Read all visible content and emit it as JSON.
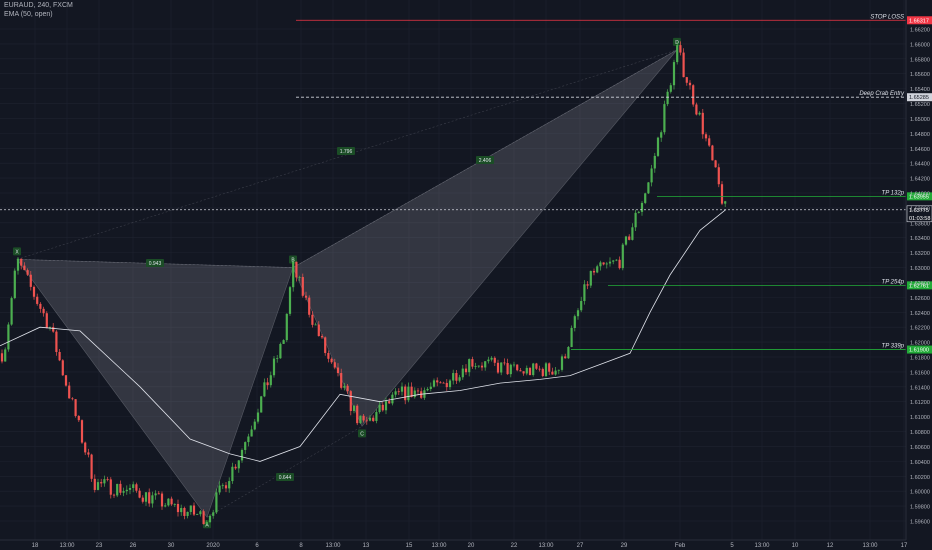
{
  "symbol": {
    "title": "EURAUD, 240, FXCM",
    "indicator": "EMA (50, open)"
  },
  "price_axis": {
    "ticks": [
      "1.66200",
      "1.66000",
      "1.65800",
      "1.65600",
      "1.65400",
      "1.65200",
      "1.65000",
      "1.64800",
      "1.64600",
      "1.64400",
      "1.64200",
      "1.64000",
      "1.63800",
      "1.63600",
      "1.63400",
      "1.63200",
      "1.63000",
      "1.62800",
      "1.62600",
      "1.62400",
      "1.62200",
      "1.62000",
      "1.61800",
      "1.61600",
      "1.61400",
      "1.61200",
      "1.61000",
      "1.60800",
      "1.60600",
      "1.60400",
      "1.60200",
      "1.60000",
      "1.59800",
      "1.59600"
    ],
    "current_price": "1.63775",
    "countdown": "01:03:58"
  },
  "time_axis": {
    "labels": [
      "18",
      "13:00",
      "23",
      "26",
      "30",
      "2020",
      "6",
      "8",
      "13:00",
      "13",
      "15",
      "13:00",
      "20",
      "22",
      "13:00",
      "27",
      "29",
      "Feb",
      "5",
      "13:00",
      "10",
      "12",
      "13:00",
      "17"
    ]
  },
  "levels": [
    {
      "label": "STOP LOSS",
      "price": 1.66317,
      "tag": "1.66317",
      "color": "#f23645",
      "style": "solid"
    },
    {
      "label": "Deep Crab Entry",
      "price": 1.65285,
      "tag": "1.65285",
      "color": "#d1d4dc",
      "style": "dashed"
    },
    {
      "label": "TP 132p",
      "price": 1.63955,
      "tag": "1.63955",
      "color": "#22ab38",
      "style": "solid"
    },
    {
      "label": "TP 254p",
      "price": 1.62761,
      "tag": "1.62761",
      "color": "#22ab38",
      "style": "solid"
    },
    {
      "label": "TP 339p",
      "price": 1.619,
      "tag": "1.61900",
      "color": "#22ab38",
      "style": "solid"
    }
  ],
  "pattern": {
    "points": [
      {
        "label": "X",
        "price": 1.6311
      },
      {
        "label": "A",
        "price": 1.5965
      },
      {
        "label": "B",
        "price": 1.63
      },
      {
        "label": "C",
        "price": 1.6087
      },
      {
        "label": "D",
        "price": 1.6592
      }
    ],
    "ratios": [
      "0.943",
      "0.644",
      "1.796",
      "2.406"
    ]
  },
  "colors": {
    "background": "#131722",
    "up": "#26a69a",
    "bull": "#4caf50",
    "bear": "#ef5350",
    "ema": "#e0e3eb",
    "grid": "#1f2330",
    "pattern_fill": "#b2b5be"
  },
  "chart_data": {
    "type": "candlestick",
    "title": "EURAUD, 240, FXCM",
    "ylabel": "",
    "ylim": [
      1.5954,
      1.6645
    ],
    "keypoints": [
      {
        "x": "Dec 16",
        "close": 1.6185
      },
      {
        "x": "Dec 17",
        "close": 1.631
      },
      {
        "x": "Dec 19",
        "close": 1.622
      },
      {
        "x": "Dec 23",
        "close": 1.601
      },
      {
        "x": "Dec 27",
        "close": 1.6
      },
      {
        "x": "Dec 30",
        "close": 1.5975
      },
      {
        "x": "Dec 31",
        "close": 1.5965
      },
      {
        "x": "Jan 2",
        "close": 1.605
      },
      {
        "x": "Jan 6",
        "close": 1.62
      },
      {
        "x": "Jan 7",
        "close": 1.63
      },
      {
        "x": "Jan 9",
        "close": 1.617
      },
      {
        "x": "Jan 12",
        "close": 1.6087
      },
      {
        "x": "Jan 14",
        "close": 1.613
      },
      {
        "x": "Jan 17",
        "close": 1.614
      },
      {
        "x": "Jan 20",
        "close": 1.6175
      },
      {
        "x": "Jan 22",
        "close": 1.616
      },
      {
        "x": "Jan 24",
        "close": 1.6165
      },
      {
        "x": "Jan 27",
        "close": 1.629
      },
      {
        "x": "Jan 29",
        "close": 1.631
      },
      {
        "x": "Jan 30",
        "close": 1.642
      },
      {
        "x": "Jan 31",
        "close": 1.6592
      },
      {
        "x": "Feb 3",
        "close": 1.65
      },
      {
        "x": "Feb 4",
        "close": 1.6378
      }
    ],
    "ema": [
      1.6195,
      1.622,
      1.6215,
      1.614,
      1.607,
      1.605,
      1.604,
      1.606,
      1.613,
      1.612,
      1.613,
      1.6135,
      1.6145,
      1.615,
      1.6155,
      1.617,
      1.6185,
      1.624,
      1.629,
      1.635,
      1.6378
    ]
  }
}
